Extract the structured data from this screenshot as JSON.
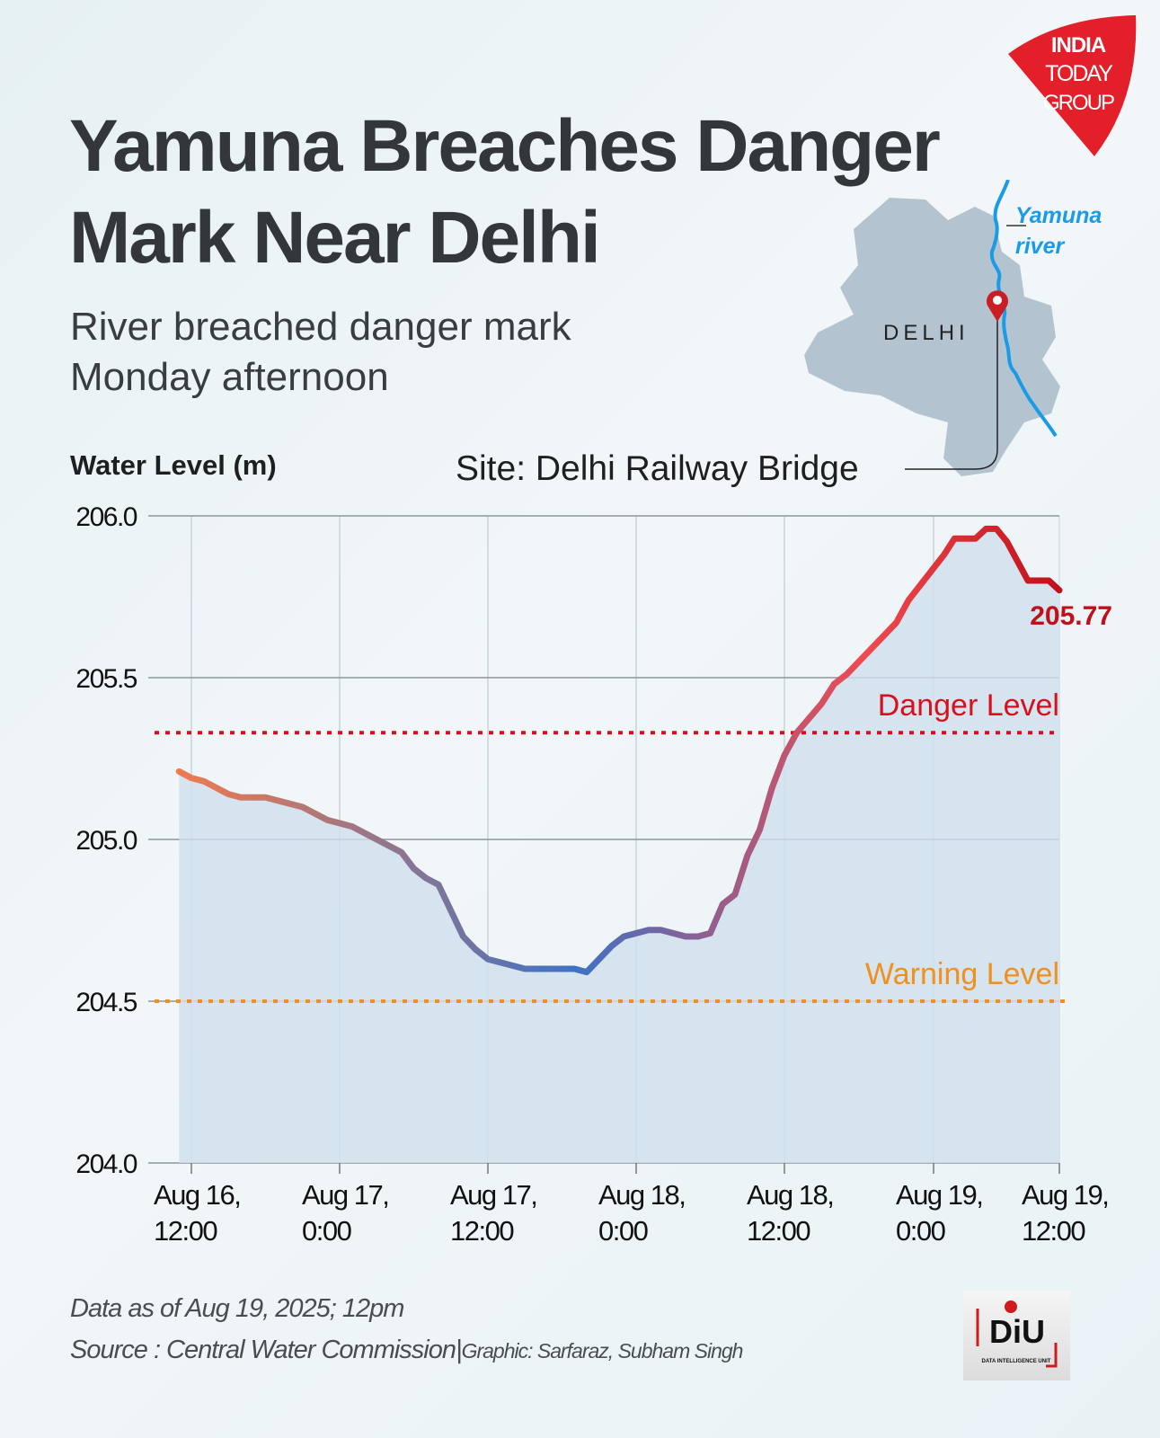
{
  "header": {
    "title_line1": "Yamuna Breaches Danger",
    "title_line2": "Mark Near Delhi",
    "subtitle_line1": "River breached danger mark",
    "subtitle_line2": "Monday afternoon"
  },
  "logo": {
    "text": [
      "INDIA",
      "TODAY",
      "GROUP"
    ],
    "color": "#e3202a"
  },
  "map": {
    "region_label": "DELHI",
    "river_label_line1": "Yamuna",
    "river_label_line2": "river",
    "river_color": "#1a9be6",
    "region_color": "#b3c4d0",
    "pin_color": "#c81e24"
  },
  "site_label": "Site: Delhi Railway Bridge",
  "chart_data": {
    "type": "area",
    "ylabel": "Water Level (m)",
    "ylim": [
      204.0,
      206.0
    ],
    "yticks": [
      "206.0",
      "205.5",
      "205.0",
      "204.5",
      "204.0"
    ],
    "xticks": [
      {
        "time": "2025-08-16 12:00",
        "line1": "Aug 16,",
        "line2": "12:00"
      },
      {
        "time": "2025-08-17 00:00",
        "line1": "Aug 17,",
        "line2": "0:00"
      },
      {
        "time": "2025-08-17 12:00",
        "line1": "Aug 17,",
        "line2": "12:00"
      },
      {
        "time": "2025-08-18 00:00",
        "line1": "Aug 18,",
        "line2": "0:00"
      },
      {
        "time": "2025-08-18 12:00",
        "line1": "Aug 18,",
        "line2": "12:00"
      },
      {
        "time": "2025-08-19 00:00",
        "line1": "Aug 19,",
        "line2": "0:00"
      },
      {
        "time": "2025-08-19 12:00",
        "line1": "Aug 19,",
        "line2": "12:00"
      }
    ],
    "grid": true,
    "reference_lines": [
      {
        "label": "Danger Level",
        "value": 205.33,
        "color": "#d8101e"
      },
      {
        "label": "Warning Level",
        "value": 204.5,
        "color": "#f0901e"
      }
    ],
    "end_label": "205.77",
    "end_label_color": "#c0101a",
    "line_colors": [
      "#ee7a50",
      "#3f72c4",
      "#f04a50",
      "#c0101a"
    ],
    "fill_color": "#cfe0ee",
    "series": [
      {
        "x": [
          "2025-08-16 11:00",
          "2025-08-16 12:00",
          "2025-08-16 13:00",
          "2025-08-16 15:00",
          "2025-08-16 16:00",
          "2025-08-16 18:00",
          "2025-08-16 21:00",
          "2025-08-16 23:00",
          "2025-08-17 01:00",
          "2025-08-17 03:00",
          "2025-08-17 05:00",
          "2025-08-17 06:00",
          "2025-08-17 07:00",
          "2025-08-17 08:00",
          "2025-08-17 10:00",
          "2025-08-17 11:00",
          "2025-08-17 12:00",
          "2025-08-17 15:00",
          "2025-08-17 19:00",
          "2025-08-17 20:00",
          "2025-08-17 22:00",
          "2025-08-17 23:00",
          "2025-08-18 01:00",
          "2025-08-18 02:00",
          "2025-08-18 04:00",
          "2025-08-18 05:00",
          "2025-08-18 06:00",
          "2025-08-18 07:00",
          "2025-08-18 08:00",
          "2025-08-18 09:00",
          "2025-08-18 10:00",
          "2025-08-18 11:00",
          "2025-08-18 12:00",
          "2025-08-18 13:00",
          "2025-08-18 15:00",
          "2025-08-18 16:00",
          "2025-08-18 17:00",
          "2025-08-18 21:00",
          "2025-08-18 22:00",
          "2025-08-19 01:00",
          "2025-08-19 02:00",
          "2025-08-19 04:00",
          "2025-08-19 05:00",
          "2025-08-19 06:00",
          "2025-08-19 07:00",
          "2025-08-19 09:00",
          "2025-08-19 11:00",
          "2025-08-19 12:00"
        ],
        "y": [
          205.21,
          205.19,
          205.18,
          205.14,
          205.13,
          205.13,
          205.1,
          205.06,
          205.04,
          205.0,
          204.96,
          204.91,
          204.88,
          204.86,
          204.7,
          204.66,
          204.63,
          204.6,
          204.6,
          204.59,
          204.67,
          204.7,
          204.72,
          204.72,
          204.7,
          204.7,
          204.71,
          204.8,
          204.83,
          204.95,
          205.03,
          205.16,
          205.26,
          205.33,
          205.42,
          205.48,
          205.51,
          205.67,
          205.74,
          205.88,
          205.93,
          205.93,
          205.96,
          205.96,
          205.92,
          205.8,
          205.8,
          205.77
        ]
      }
    ]
  },
  "footer": {
    "data_note": "Data as of Aug 19, 2025; 12pm",
    "source": "Source : Central Water Commission",
    "separator": "|",
    "credit": "Graphic: Sarfaraz, Subham Singh",
    "diu_logo": {
      "text": "DiU",
      "subtext": "DATA INTELLIGENCE UNIT"
    }
  }
}
